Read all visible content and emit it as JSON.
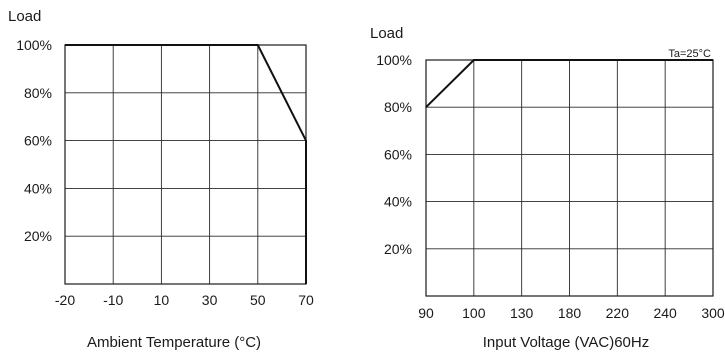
{
  "chart_data": [
    {
      "type": "line",
      "ylabel": "Load",
      "xlabel": "Ambient Temperature (°C)",
      "x_ticks": [
        "-20",
        "-10",
        "10",
        "30",
        "50",
        "70"
      ],
      "y_ticks": [
        "100%",
        "80%",
        "60%",
        "40%",
        "20%"
      ],
      "ylim": [
        0,
        100
      ],
      "grid": true,
      "series": [
        {
          "x": [
            "-20",
            "50",
            "70",
            "70"
          ],
          "y": [
            100,
            100,
            60,
            0
          ]
        }
      ]
    },
    {
      "type": "line",
      "ylabel": "Load",
      "xlabel": "Input Voltage (VAC)60Hz",
      "annotation": "Ta=25°C",
      "x_ticks": [
        "90",
        "100",
        "130",
        "180",
        "220",
        "240",
        "300"
      ],
      "y_ticks": [
        "100%",
        "80%",
        "60%",
        "40%",
        "20%"
      ],
      "ylim": [
        0,
        100
      ],
      "grid": true,
      "series": [
        {
          "x": [
            "90",
            "100",
            "300"
          ],
          "y": [
            80,
            100,
            100
          ]
        }
      ]
    }
  ]
}
